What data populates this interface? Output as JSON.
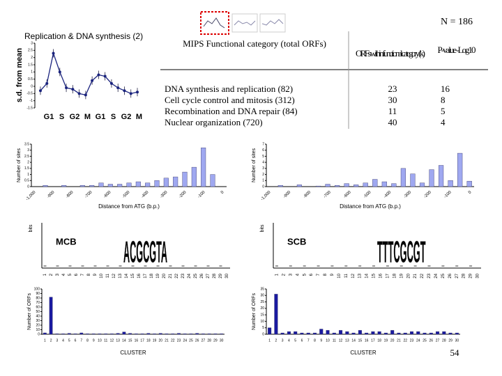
{
  "header": {
    "n_label": "N = 186",
    "page_number": "54"
  },
  "profile": {
    "title": "Replication & DNA synthesis (2)",
    "ylabel": "s.d. from mean",
    "phases": [
      "G1",
      "S",
      "G2",
      "M",
      "G1",
      "S",
      "G2",
      "M"
    ],
    "values": [
      -0.3,
      0.2,
      2.3,
      1.0,
      -0.1,
      -0.2,
      -0.5,
      -0.6,
      0.4,
      0.8,
      0.7,
      0.2,
      -0.1,
      -0.3,
      -0.5,
      -0.4
    ],
    "ylim": [
      -1.5,
      3
    ],
    "yticks": [
      3,
      2.5,
      2,
      1.5,
      1,
      0.5,
      0,
      -0.5,
      -1,
      -1.5
    ]
  },
  "table": {
    "headers": [
      "MIPS Functional category (total ORFs)",
      "ORFs within functional category (k)",
      "P-value -Log10"
    ],
    "rows": [
      [
        "DNA synthesis and replication (82)",
        23,
        16
      ],
      [
        "Cell cycle control and mitosis (312)",
        30,
        8
      ],
      [
        "Recombination and DNA repair (84)",
        11,
        5
      ],
      [
        "Nuclear organization (720)",
        40,
        4
      ]
    ]
  },
  "site_charts": [
    {
      "ylabel": "Number of sites",
      "xlabel": "Distance from ATG (b.p.)",
      "xticks": [
        "-1,000",
        "-900",
        "-800",
        "-700",
        "-600",
        "-500",
        "-400",
        "-300",
        "-200",
        "-100",
        "0"
      ],
      "values": [
        0,
        0.1,
        0,
        0.1,
        0,
        0.1,
        0.1,
        0.3,
        0.2,
        0.2,
        0.3,
        0.4,
        0.3,
        0.5,
        0.7,
        0.8,
        1.2,
        1.6,
        3.2,
        1.0,
        0
      ],
      "ylim": [
        0,
        3.5
      ],
      "yticks": [
        0,
        0.5,
        1,
        1.5,
        2,
        2.5,
        3,
        3.5
      ]
    },
    {
      "ylabel": "Number of sites",
      "xlabel": "Distance from ATG (b.p.)",
      "xticks": [
        "-1,000",
        "-900",
        "-800",
        "-700",
        "-600",
        "-500",
        "-400",
        "-300",
        "-200",
        "-100",
        "0"
      ],
      "values": [
        0,
        0.2,
        0,
        0.3,
        0,
        0.1,
        0.4,
        0.2,
        0.5,
        0.3,
        0.6,
        1.2,
        0.8,
        0.5,
        3.0,
        2.1,
        0.6,
        2.8,
        3.5,
        1.0,
        5.5,
        0.9
      ],
      "ylim": [
        0,
        7
      ],
      "yticks": [
        0,
        1,
        2,
        3,
        4,
        5,
        6,
        7
      ]
    }
  ],
  "motifs": [
    {
      "label": "MCB",
      "ylabel": "bits",
      "logo": "ACGCGTA"
    },
    {
      "label": "SCB",
      "ylabel": "bits",
      "logo": "TTTCGCGT"
    }
  ],
  "cluster_charts": [
    {
      "ylabel": "Number of ORFs",
      "xlabel": "CLUSTER",
      "values": [
        3,
        82,
        1,
        1,
        2,
        1,
        3,
        1,
        1,
        1,
        1,
        1,
        2,
        5,
        2,
        1,
        1,
        2,
        1,
        2,
        1,
        1,
        2,
        1,
        1,
        2,
        1,
        1,
        1,
        1
      ],
      "ylim": [
        0,
        100
      ],
      "yticks": [
        0,
        10,
        20,
        30,
        40,
        50,
        60,
        70,
        80,
        90,
        100
      ]
    },
    {
      "ylabel": "Number of ORFs",
      "xlabel": "CLUSTER",
      "values": [
        5,
        31,
        1,
        2,
        2,
        1,
        1,
        1,
        4,
        3,
        1,
        3,
        2,
        1,
        3,
        1,
        2,
        2,
        1,
        3,
        1,
        1,
        2,
        2,
        1,
        1,
        2,
        2,
        1,
        1
      ],
      "ylim": [
        0,
        35
      ],
      "yticks": [
        0,
        5,
        10,
        15,
        20,
        25,
        30,
        35
      ]
    }
  ]
}
